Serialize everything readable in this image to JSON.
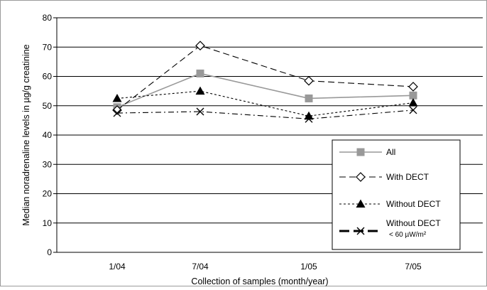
{
  "chart_data": {
    "type": "line",
    "xlabel": "Collection of samples (month/year)",
    "ylabel": "Median noradrenaline levels in µg/g creatinine",
    "categories": [
      "1/04",
      "7/04",
      "1/05",
      "7/05"
    ],
    "ylim": [
      0,
      80
    ],
    "yticks": [
      "0",
      "10",
      "20",
      "30",
      "40",
      "50",
      "60",
      "70",
      "80"
    ],
    "grid": "horizontal",
    "legend_position": "bottom-right",
    "series": [
      {
        "key": "all",
        "name": "All",
        "values": [
          49.5,
          61,
          52.5,
          53.5
        ],
        "marker": "square",
        "line": "solid",
        "color": "#999999"
      },
      {
        "key": "with",
        "name": "With DECT",
        "values": [
          48.5,
          70.5,
          58.5,
          56.5
        ],
        "marker": "diamond-open",
        "line": "dashed",
        "color": "#000000"
      },
      {
        "key": "without",
        "name": "Without DECT",
        "values": [
          52.5,
          55,
          46.5,
          51
        ],
        "marker": "triangle",
        "line": "dotted",
        "color": "#000000"
      },
      {
        "key": "low",
        "name": "Without DECT",
        "name_sub": "< 60 µW/m²",
        "values": [
          47.5,
          48,
          45.5,
          48.5
        ],
        "marker": "x",
        "line": "dash-dot",
        "color": "#000000"
      }
    ]
  }
}
